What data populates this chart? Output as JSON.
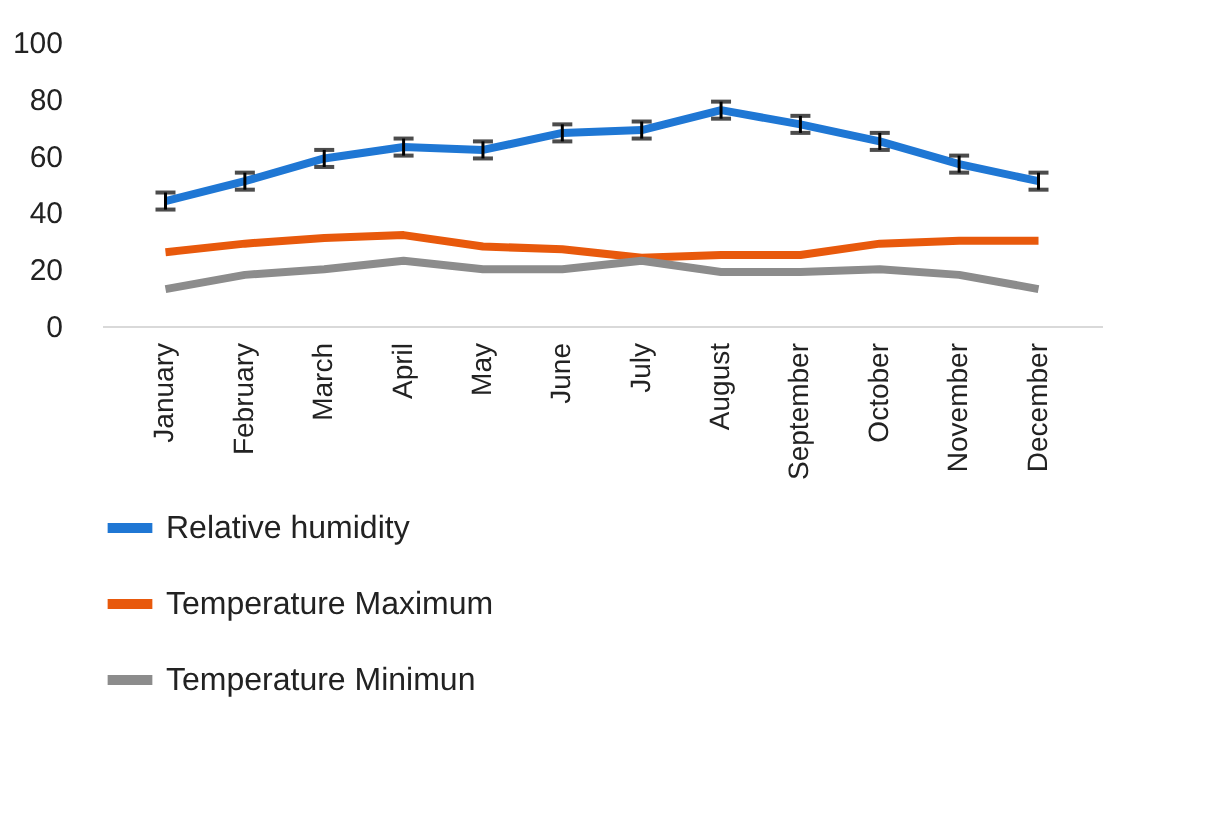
{
  "chart_data": {
    "type": "line",
    "categories": [
      "January",
      "February",
      "March",
      "April",
      "May",
      "June",
      "July",
      "August",
      "September",
      "October",
      "November",
      "December"
    ],
    "series": [
      {
        "name": "Relative humidity",
        "color": "#1f77d4",
        "values": [
          44,
          51,
          59,
          63,
          62,
          68,
          69,
          76,
          71,
          65,
          57,
          51
        ],
        "errors": [
          3,
          3,
          3,
          3,
          3,
          3,
          3,
          3,
          3,
          3,
          3,
          3
        ]
      },
      {
        "name": "Temperature Maximum",
        "color": "#e8590c",
        "values": [
          26,
          29,
          31,
          32,
          28,
          27,
          24,
          25,
          25,
          29,
          30,
          30
        ]
      },
      {
        "name": "Temperature Minimun",
        "color": "#8c8c8c",
        "values": [
          13,
          18,
          20,
          23,
          20,
          20,
          23,
          19,
          19,
          20,
          18,
          13
        ]
      }
    ],
    "ylim": [
      0,
      100
    ],
    "yticks": [
      0,
      20,
      40,
      60,
      80,
      100
    ],
    "grid": false,
    "legend": "bottom",
    "marker": "none",
    "line_style": "solid"
  }
}
